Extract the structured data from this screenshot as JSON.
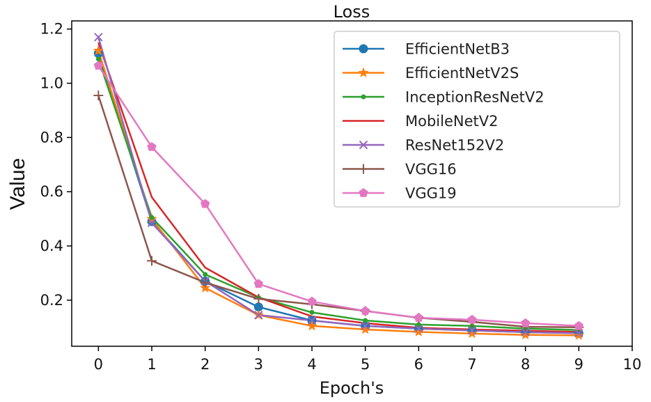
{
  "chart_data": {
    "type": "line",
    "title": "Loss",
    "xlabel": "Epoch's",
    "ylabel": "Value",
    "xlim": [
      -0.5,
      10
    ],
    "ylim": [
      0.03,
      1.23
    ],
    "x_ticks": [
      "0",
      "1",
      "2",
      "3",
      "4",
      "5",
      "6",
      "7",
      "8",
      "9",
      "10"
    ],
    "y_ticks": [
      "0.2",
      "0.4",
      "0.6",
      "0.8",
      "1.0",
      "1.2"
    ],
    "legend_position": "top-right",
    "x": [
      0,
      1,
      2,
      3,
      4,
      5,
      6,
      7,
      8,
      9
    ],
    "series": [
      {
        "name": "EfficientNetB3",
        "color": "#1f77b4",
        "marker": "circle",
        "values": [
          1.11,
          0.49,
          0.27,
          0.175,
          0.125,
          0.105,
          0.095,
          0.088,
          0.082,
          0.078
        ]
      },
      {
        "name": "EfficientNetV2S",
        "color": "#ff7f0e",
        "marker": "star",
        "values": [
          1.12,
          0.5,
          0.245,
          0.145,
          0.105,
          0.092,
          0.083,
          0.077,
          0.072,
          0.07
        ]
      },
      {
        "name": "InceptionResNetV2",
        "color": "#2ca02c",
        "marker": "point",
        "values": [
          1.09,
          0.505,
          0.295,
          0.21,
          0.155,
          0.125,
          0.11,
          0.105,
          0.095,
          0.09
        ]
      },
      {
        "name": "MobileNetV2",
        "color": "#d62728",
        "marker": "none",
        "values": [
          1.15,
          0.58,
          0.32,
          0.21,
          0.14,
          0.115,
          0.098,
          0.092,
          0.087,
          0.083
        ]
      },
      {
        "name": "ResNet152V2",
        "color": "#9467bd",
        "marker": "x",
        "values": [
          1.17,
          0.485,
          0.27,
          0.145,
          0.125,
          0.105,
          0.095,
          0.088,
          0.082,
          0.078
        ]
      },
      {
        "name": "VGG16",
        "color": "#8c564b",
        "marker": "plus",
        "values": [
          0.955,
          0.345,
          0.265,
          0.205,
          0.185,
          0.16,
          0.135,
          0.12,
          0.102,
          0.1
        ]
      },
      {
        "name": "VGG19",
        "color": "#e377c2",
        "marker": "pentagon",
        "values": [
          1.065,
          0.765,
          0.555,
          0.26,
          0.195,
          0.16,
          0.135,
          0.128,
          0.115,
          0.105
        ]
      }
    ]
  }
}
